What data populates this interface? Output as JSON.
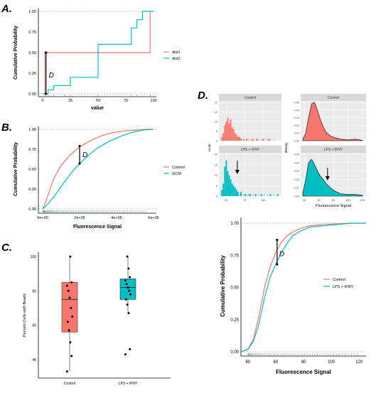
{
  "panel_labels": {
    "a": "A.",
    "b": "B.",
    "c": "C.",
    "d": "D."
  },
  "colors": {
    "red": "#F8766D",
    "teal": "#00BFC4",
    "grid_bg": "#EBEBEB",
    "strip": "#D9D9D9"
  },
  "chart_data": [
    {
      "id": "A",
      "type": "line",
      "subtype": "ecdf-step",
      "xlabel": "value",
      "ylabel": "Cumulative Probability",
      "xlim": [
        0,
        100
      ],
      "ylim": [
        0,
        1
      ],
      "xticks": [
        0,
        25,
        50,
        75,
        100
      ],
      "xtick_labels": [
        "0",
        "25",
        "50",
        "75",
        "100"
      ],
      "yticks": [
        0,
        0.25,
        0.5,
        0.75,
        1.0
      ],
      "ytick_labels": [
        "0.00",
        "0.25",
        "0.50",
        "0.75",
        "1.00"
      ],
      "legend": {
        "position": "right"
      },
      "annotation": "D",
      "series": [
        {
          "name": "dist1",
          "color": "#F8766D",
          "x": [
            0,
            2,
            97,
            100
          ],
          "y": [
            0,
            0.5,
            1.0,
            1.0
          ]
        },
        {
          "name": "dist2",
          "color": "#00BFC4",
          "x": [
            0,
            5,
            10,
            25,
            50,
            80,
            85,
            90,
            100
          ],
          "y": [
            0,
            0.05,
            0.1,
            0.2,
            0.6,
            0.8,
            0.9,
            1.0,
            1.0
          ]
        }
      ],
      "rug_x": [
        2,
        5,
        10,
        20,
        25,
        50,
        80,
        85,
        97
      ]
    },
    {
      "id": "B",
      "type": "line",
      "subtype": "ecdf",
      "xlabel": "Fluorescence Signal",
      "ylabel": "Cumulative Probability",
      "xlim": [
        0,
        600000
      ],
      "ylim": [
        0,
        1
      ],
      "xticks": [
        0,
        200000,
        400000,
        600000
      ],
      "xtick_labels": [
        "0e+00",
        "2e+05",
        "4e+05",
        "6e+05"
      ],
      "yticks": [
        0,
        0.25,
        0.5,
        0.75,
        1.0
      ],
      "ytick_labels": [
        "0.00",
        "0.25",
        "0.50",
        "0.75",
        "1.00"
      ],
      "legend": {
        "position": "right"
      },
      "annotation": "D",
      "series": [
        {
          "name": "Control",
          "color": "#F8766D",
          "x": [
            0,
            10000,
            30000,
            60000,
            100000,
            150000,
            200000,
            260000,
            320000,
            380000,
            440000,
            500000,
            560000,
            600000
          ],
          "y": [
            0,
            0.05,
            0.18,
            0.38,
            0.55,
            0.68,
            0.78,
            0.86,
            0.92,
            0.96,
            0.98,
            0.99,
            1.0,
            1.0
          ]
        },
        {
          "name": "GCM",
          "color": "#00BFC4",
          "x": [
            0,
            20000,
            60000,
            100000,
            150000,
            200000,
            250000,
            300000,
            360000,
            420000,
            480000,
            540000,
            600000
          ],
          "y": [
            0,
            0.04,
            0.15,
            0.28,
            0.44,
            0.57,
            0.68,
            0.77,
            0.85,
            0.91,
            0.96,
            0.99,
            1.0
          ]
        }
      ]
    },
    {
      "id": "C",
      "type": "box",
      "ylabel": "Percent Cells with Beads",
      "ylim": [
        30,
        100
      ],
      "yticks": [
        40,
        60,
        80,
        100
      ],
      "ytick_labels": [
        "40",
        "60",
        "80",
        "100"
      ],
      "categories": [
        "Control",
        "LPS + IFNY"
      ],
      "boxes": [
        {
          "name": "Control",
          "color": "#F8766D",
          "min": 33,
          "q1": 56,
          "median": 75,
          "q3": 85,
          "max": 100,
          "points": [
            33,
            42,
            50,
            57,
            62,
            65,
            70,
            76,
            80,
            83,
            85,
            100
          ]
        },
        {
          "name": "LPS + IFNY",
          "color": "#00BFC4",
          "min": 67,
          "q1": 75,
          "median": 82,
          "q3": 87,
          "max": 100,
          "points": [
            43,
            46,
            67,
            72,
            75,
            78,
            80,
            82,
            84,
            86,
            88,
            93,
            100
          ]
        }
      ]
    },
    {
      "id": "D-hist",
      "type": "bar",
      "subtype": "histogram-facets",
      "xlabel": "",
      "ylabel": "count",
      "facets": [
        "Control",
        "LPS + IFNY"
      ],
      "xlim": [
        40,
        125
      ],
      "xticks": [
        50,
        75,
        100
      ],
      "xtick_labels": [
        "50",
        "75",
        "100"
      ],
      "ylim": [
        0,
        20
      ],
      "yticks": [
        0,
        5,
        10,
        15,
        20
      ],
      "ytick_labels": [
        "0",
        "5",
        "10",
        "15",
        "20"
      ],
      "series": [
        {
          "name": "Control",
          "color": "#F8766D",
          "x": [
            44,
            46,
            48,
            50,
            52,
            54,
            56,
            58,
            60,
            62,
            64,
            66,
            68,
            70,
            74,
            78,
            86,
            92,
            100,
            108
          ],
          "y": [
            2,
            4,
            8,
            10,
            12,
            9,
            11,
            7,
            6,
            4,
            3,
            2,
            2,
            1,
            1,
            1,
            1,
            1,
            1,
            1
          ]
        },
        {
          "name": "LPS + IFNY",
          "color": "#00BFC4",
          "x": [
            44,
            46,
            48,
            50,
            52,
            54,
            56,
            58,
            60,
            62,
            64,
            66,
            70,
            76,
            82,
            90,
            98,
            110,
            120
          ],
          "y": [
            3,
            6,
            14,
            17,
            12,
            10,
            8,
            6,
            5,
            4,
            3,
            2,
            2,
            1,
            1,
            1,
            1,
            1,
            1
          ]
        }
      ]
    },
    {
      "id": "D-density",
      "type": "area",
      "subtype": "density-facets",
      "xlabel": "Fluorescence Signal",
      "ylabel": "density",
      "facets": [
        "Control",
        "LPS + IFNY"
      ],
      "xlim": [
        35,
        125
      ],
      "xticks": [
        40,
        60,
        80,
        100,
        120
      ],
      "xtick_labels": [
        "40",
        "60",
        "80",
        "100",
        "120"
      ],
      "ylim": [
        0,
        0.05
      ],
      "yticks": [
        0,
        0.01,
        0.02,
        0.03,
        0.04,
        0.05
      ],
      "ytick_labels": [
        "0.00",
        "0.01",
        "0.02",
        "0.03",
        "0.04",
        "0.05"
      ],
      "series": [
        {
          "name": "Control",
          "color": "#F8766D",
          "x": [
            38,
            42,
            46,
            50,
            54,
            58,
            62,
            66,
            70,
            76,
            82,
            90,
            100,
            110,
            120
          ],
          "y": [
            0.002,
            0.01,
            0.03,
            0.048,
            0.05,
            0.04,
            0.028,
            0.018,
            0.011,
            0.006,
            0.004,
            0.002,
            0.001,
            0.002,
            0.0005
          ]
        },
        {
          "name": "LPS + IFNY",
          "color": "#00BFC4",
          "x": [
            38,
            42,
            46,
            50,
            54,
            58,
            62,
            66,
            70,
            76,
            82,
            90,
            100,
            110,
            120
          ],
          "y": [
            0.004,
            0.02,
            0.04,
            0.044,
            0.038,
            0.03,
            0.024,
            0.02,
            0.015,
            0.01,
            0.006,
            0.003,
            0.002,
            0.002,
            0.001
          ]
        }
      ]
    },
    {
      "id": "D-ecdf",
      "type": "line",
      "subtype": "ecdf",
      "xlabel": "Fluorescence Signal",
      "ylabel": "Cumulative Probability",
      "xlim": [
        35,
        125
      ],
      "ylim": [
        0,
        1
      ],
      "xticks": [
        40,
        60,
        80,
        100,
        120
      ],
      "xtick_labels": [
        "40",
        "60",
        "80",
        "100",
        "120"
      ],
      "yticks": [
        0,
        0.25,
        0.5,
        0.75,
        1.0
      ],
      "ytick_labels": [
        "0.00",
        "0.25",
        "0.50",
        "0.75",
        "1.00"
      ],
      "legend": {
        "position": "right"
      },
      "annotation": "D",
      "series": [
        {
          "name": "Control",
          "color": "#F8766D",
          "x": [
            35,
            40,
            44,
            48,
            52,
            56,
            60,
            64,
            68,
            72,
            78,
            85,
            95,
            105,
            115,
            125
          ],
          "y": [
            0,
            0.02,
            0.1,
            0.28,
            0.5,
            0.66,
            0.77,
            0.85,
            0.9,
            0.93,
            0.96,
            0.98,
            0.99,
            0.995,
            1.0,
            1.0
          ]
        },
        {
          "name": "LPS + IFNY",
          "color": "#00BFC4",
          "x": [
            35,
            40,
            44,
            48,
            52,
            56,
            60,
            64,
            68,
            72,
            78,
            85,
            95,
            105,
            115,
            125
          ],
          "y": [
            0,
            0.02,
            0.08,
            0.22,
            0.42,
            0.58,
            0.68,
            0.77,
            0.84,
            0.9,
            0.94,
            0.97,
            0.98,
            0.99,
            1.0,
            1.0
          ]
        }
      ]
    }
  ]
}
